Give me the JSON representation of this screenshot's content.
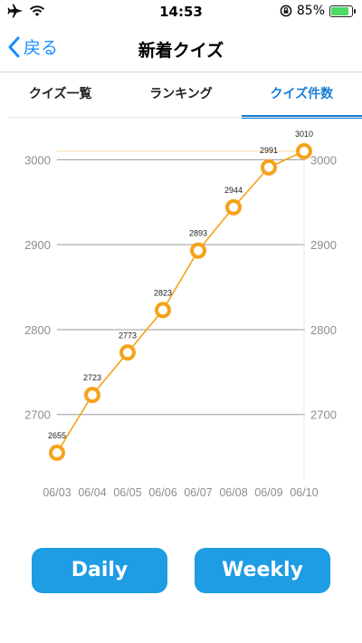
{
  "status_bar": {
    "time": "14:53",
    "battery": "85%",
    "battery_level": 0.85
  },
  "nav": {
    "back_label": "戻る",
    "title": "新着クイズ"
  },
  "tabs": [
    {
      "label": "クイズ一覧",
      "active": false
    },
    {
      "label": "ランキング",
      "active": false
    },
    {
      "label": "クイズ件数",
      "active": true
    }
  ],
  "buttons": {
    "daily": "Daily",
    "weekly": "Weekly"
  },
  "colors": {
    "accent": "#1a7fd6",
    "line": "#f5a21b",
    "button": "#1e9ce4"
  },
  "chart_data": {
    "type": "line",
    "categories": [
      "06/03",
      "06/04",
      "06/05",
      "06/06",
      "06/07",
      "06/08",
      "06/09",
      "06/10"
    ],
    "values": [
      2655,
      2723,
      2773,
      2823,
      2893,
      2944,
      2991,
      3010
    ],
    "data_labels": [
      "2655",
      "2723",
      "2773",
      "2823",
      "2893",
      "2944",
      "2991",
      "3010"
    ],
    "y_ticks": [
      2700,
      2800,
      2900,
      3000
    ],
    "ylim": [
      2640,
      3026
    ],
    "grid": true,
    "axis_labels_both_sides": true
  }
}
